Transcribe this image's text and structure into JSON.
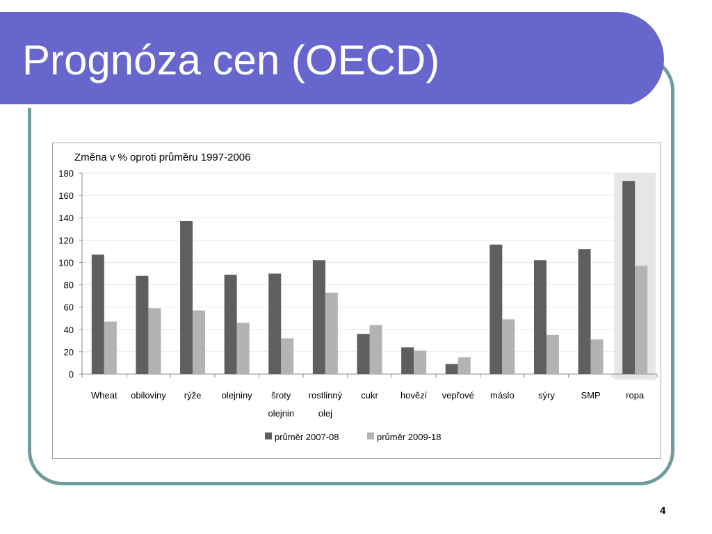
{
  "slide": {
    "title": "Prognóza cen (OECD)",
    "page_number": "4",
    "colors": {
      "title_bar": "#6666cc",
      "frame_border": "#6f9c9c",
      "series_1": "#5f5f5f",
      "series_2": "#b3b3b3",
      "highlight_band": "#e6e6e6"
    }
  },
  "chart_data": {
    "type": "bar",
    "title": "Změna v % oproti průměru 1997-2006",
    "xlabel": "",
    "ylabel": "",
    "ylim": [
      0,
      180
    ],
    "yticks": [
      "0",
      "20",
      "40",
      "60",
      "80",
      "100",
      "120",
      "140",
      "160",
      "180"
    ],
    "grid": true,
    "legend": "bottom-center",
    "categories": [
      [
        "Wheat"
      ],
      [
        "obiloviny"
      ],
      [
        "rýže"
      ],
      [
        "olejniny"
      ],
      [
        "šroty",
        "olejnin"
      ],
      [
        "rostlinný",
        "olej"
      ],
      [
        "cukr"
      ],
      [
        "hovězí"
      ],
      [
        "vepřové"
      ],
      [
        "máslo"
      ],
      [
        "sýry"
      ],
      [
        "SMP"
      ],
      [
        "ropa"
      ]
    ],
    "highlighted_category_index": 12,
    "series": [
      {
        "name": "průměr 2007-08",
        "color": "#5f5f5f",
        "values": [
          107,
          88,
          137,
          89,
          90,
          102,
          36,
          24,
          9,
          116,
          102,
          112,
          173
        ]
      },
      {
        "name": "průměr 2009-18",
        "color": "#b3b3b3",
        "values": [
          47,
          59,
          57,
          46,
          32,
          73,
          44,
          21,
          15,
          49,
          35,
          31,
          97
        ]
      }
    ]
  }
}
